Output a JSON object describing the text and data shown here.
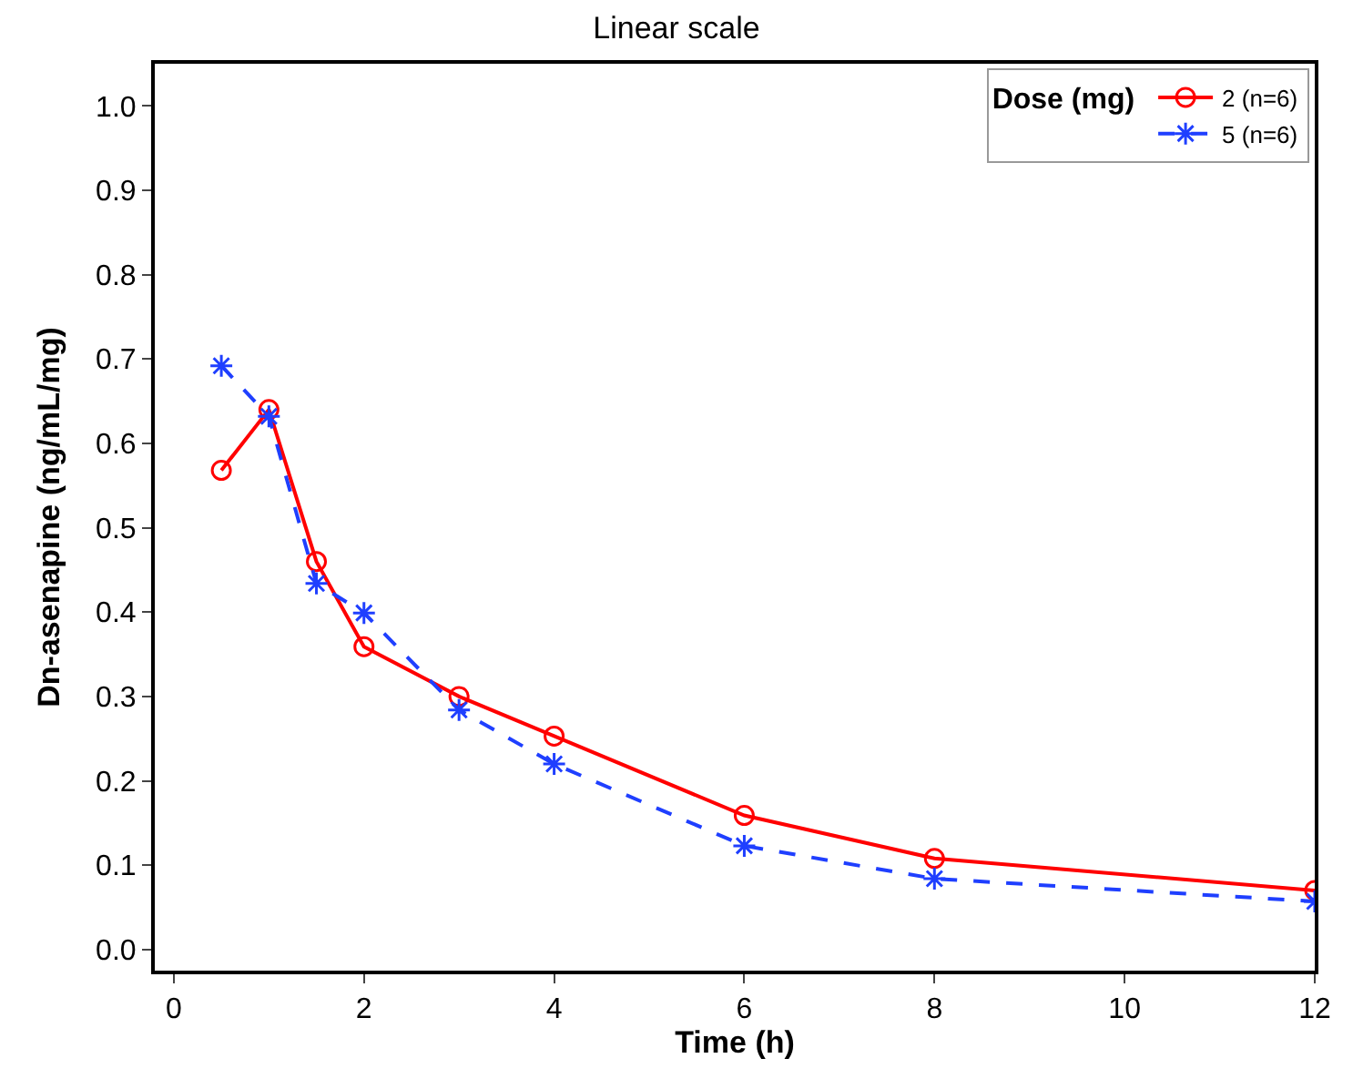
{
  "chart_data": {
    "type": "line",
    "title": "Linear scale",
    "xlabel": "Time (h)",
    "ylabel": "Dn-asenapine (ng/mL/mg)",
    "legend_title": "Dose (mg)",
    "legend": "top right",
    "x": [
      0.5,
      1,
      1.5,
      2,
      3,
      4,
      6,
      8,
      12
    ],
    "series": [
      {
        "name": "2 (n=6)",
        "color": "#ff0000",
        "marker": "circle",
        "line_style": "solid",
        "values": [
          0.568,
          0.64,
          0.46,
          0.359,
          0.3,
          0.253,
          0.159,
          0.108,
          0.07
        ]
      },
      {
        "name": "5 (n=6)",
        "color": "#1f3fff",
        "marker": "cross",
        "line_style": "dashed",
        "values": [
          0.692,
          0.632,
          0.434,
          0.399,
          0.284,
          0.22,
          0.123,
          0.084,
          0.057
        ]
      }
    ],
    "xlim": [
      -0.2,
      12
    ],
    "xticks": [
      0,
      2,
      4,
      6,
      8,
      10,
      12
    ],
    "ylim": [
      -0.025,
      1.05
    ],
    "yticks": [
      {
        "value": 0,
        "label": "0.0"
      },
      0.1,
      0.2,
      0.3,
      0.4,
      0.5,
      0.6,
      0.7,
      0.8,
      0.9,
      {
        "value": 1,
        "label": "1.0"
      }
    ]
  }
}
